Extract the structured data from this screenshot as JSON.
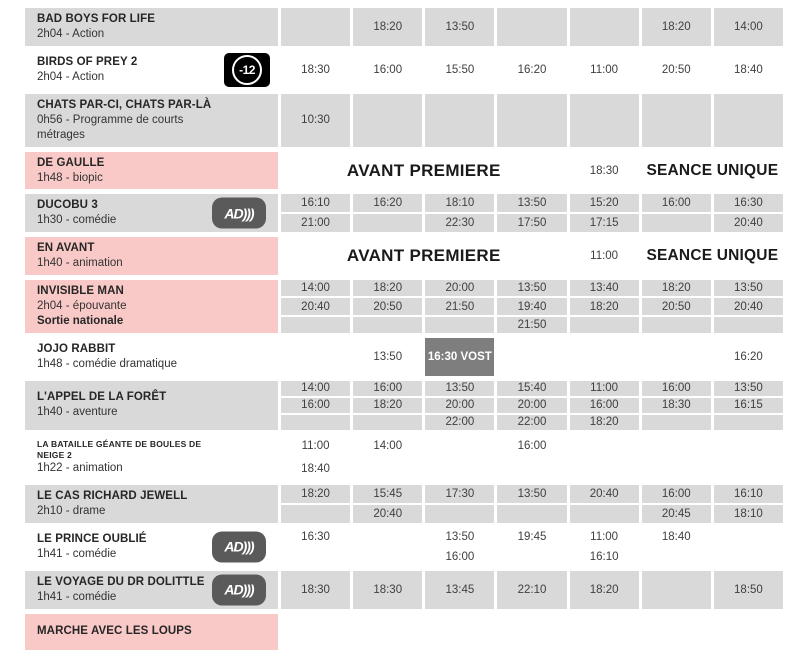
{
  "table": {
    "premiere_label": "AVANT PREMIERE",
    "unique_label": "SEANCE UNIQUE",
    "badges": {
      "minus12": "-12",
      "ad": "AD)))"
    },
    "colors": {
      "row_gray": "#d9d9d9",
      "row_pink": "#f8c9c7",
      "vost_dark": "#7e7e7e",
      "badge_gray": "#5a5a5a",
      "badge_black": "#000000"
    },
    "rows": [
      {
        "title": "BAD BOYS FOR LIFE",
        "subtitle": "2h04 - Action",
        "label_bg": "gray",
        "cell_bg": "gray",
        "lines": 1,
        "times": [
          [
            ""
          ],
          [
            "18:20"
          ],
          [
            "13:50"
          ],
          [
            ""
          ],
          [
            ""
          ],
          [
            "18:20"
          ],
          [
            "14:00"
          ]
        ]
      },
      {
        "title": "BIRDS OF PREY 2",
        "subtitle": "2h04 - Action",
        "badge": "minus12",
        "label_bg": "white",
        "cell_bg": "white",
        "lines": 1,
        "times": [
          [
            "18:30"
          ],
          [
            "16:00"
          ],
          [
            "15:50"
          ],
          [
            "16:20"
          ],
          [
            "11:00"
          ],
          [
            "20:50"
          ],
          [
            "18:40"
          ]
        ]
      },
      {
        "title": "CHATS PAR-CI, CHATS PAR-LÀ",
        "subtitle": "0h56 - Programme de courts métrages",
        "label_bg": "gray",
        "cell_bg": "gray",
        "lines": 1,
        "times": [
          [
            "10:30"
          ],
          [
            ""
          ],
          [
            ""
          ],
          [
            ""
          ],
          [
            ""
          ],
          [
            ""
          ],
          [
            ""
          ]
        ]
      },
      {
        "title": "DE GAULLE",
        "subtitle": "1h48 - biopic",
        "label_bg": "pink",
        "type": "premiere",
        "premiere_time": "18:30"
      },
      {
        "title": "DUCOBU 3",
        "subtitle": "1h30 - comédie",
        "badge": "ad",
        "label_bg": "gray",
        "cell_bg": "gray",
        "lines": 2,
        "times": [
          [
            "16:10",
            "21:00"
          ],
          [
            "16:20",
            ""
          ],
          [
            "18:10",
            "22:30"
          ],
          [
            "13:50",
            "17:50"
          ],
          [
            "15:20",
            "17:15"
          ],
          [
            "16:00",
            ""
          ],
          [
            "16:30",
            "20:40"
          ]
        ]
      },
      {
        "title": "EN AVANT",
        "subtitle": "1h40 - animation",
        "label_bg": "pink",
        "type": "premiere",
        "premiere_time": "11:00"
      },
      {
        "title": "INVISIBLE MAN",
        "subtitle": "2h04 - épouvante",
        "note": "Sortie nationale",
        "label_bg": "pink",
        "cell_bg": "gray",
        "lines": 3,
        "times": [
          [
            "14:00",
            "20:40",
            ""
          ],
          [
            "18:20",
            "20:50",
            ""
          ],
          [
            "20:00",
            "21:50",
            ""
          ],
          [
            "13:50",
            "19:40",
            "21:50"
          ],
          [
            "13:40",
            "18:20",
            ""
          ],
          [
            "18:20",
            "20:50",
            ""
          ],
          [
            "13:50",
            "20:40",
            ""
          ]
        ]
      },
      {
        "title": "JOJO RABBIT",
        "subtitle": "1h48 - comédie dramatique",
        "label_bg": "white",
        "cell_bg": "white",
        "lines": 1,
        "times": [
          [
            ""
          ],
          [
            "13:50"
          ],
          [
            {
              "t": "16:30 VOST",
              "dark": true
            }
          ],
          [
            ""
          ],
          [
            ""
          ],
          [
            ""
          ],
          [
            "16:20"
          ]
        ]
      },
      {
        "title": "L'APPEL DE LA FORÊT",
        "subtitle": "1h40 - aventure",
        "label_bg": "gray",
        "cell_bg": "gray",
        "lines": 3,
        "times": [
          [
            "14:00",
            "16:00",
            ""
          ],
          [
            "16:00",
            "18:20",
            ""
          ],
          [
            "13:50",
            "20:00",
            "22:00"
          ],
          [
            "15:40",
            "20:00",
            "22:00"
          ],
          [
            "11:00",
            "16:00",
            "18:20"
          ],
          [
            "16:00",
            "18:30",
            ""
          ],
          [
            "13:50",
            "16:15",
            ""
          ]
        ]
      },
      {
        "title": "LA BATAILLE GÉANTE DE BOULES DE NEIGE 2",
        "subtitle": "1h22 - animation",
        "label_bg": "white",
        "cell_bg": "white",
        "lines": 2,
        "small_title": true,
        "times": [
          [
            "11:00",
            "18:40"
          ],
          [
            "14:00",
            ""
          ],
          [
            "",
            ""
          ],
          [
            "16:00",
            ""
          ],
          [
            "",
            ""
          ],
          [
            "",
            ""
          ],
          [
            "",
            ""
          ]
        ]
      },
      {
        "title": "LE CAS RICHARD JEWELL",
        "subtitle": "2h10 - drame",
        "label_bg": "gray",
        "cell_bg": "gray",
        "lines": 2,
        "times": [
          [
            "18:20",
            ""
          ],
          [
            "15:45",
            "20:40"
          ],
          [
            "17:30",
            ""
          ],
          [
            "13:50",
            ""
          ],
          [
            "20:40",
            ""
          ],
          [
            "16:00",
            "20:45"
          ],
          [
            "16:10",
            "18:10"
          ]
        ]
      },
      {
        "title": "LE PRINCE OUBLIÉ",
        "subtitle": "1h41 - comédie",
        "badge": "ad",
        "label_bg": "white",
        "cell_bg": "white",
        "lines": 2,
        "times": [
          [
            "16:30",
            ""
          ],
          [
            "",
            ""
          ],
          [
            "13:50",
            "16:00"
          ],
          [
            "19:45",
            ""
          ],
          [
            "11:00",
            "16:10"
          ],
          [
            "18:40",
            ""
          ],
          [
            "",
            ""
          ]
        ]
      },
      {
        "title": "LE VOYAGE DU DR DOLITTLE",
        "subtitle": "1h41 - comédie",
        "badge": "ad",
        "label_bg": "gray",
        "cell_bg": "gray",
        "lines": 1,
        "times": [
          [
            "18:30"
          ],
          [
            "18:30"
          ],
          [
            "13:45"
          ],
          [
            "22:10"
          ],
          [
            "18:20"
          ],
          [
            ""
          ],
          [
            "18:50"
          ]
        ]
      },
      {
        "title": "MARCHE AVEC LES LOUPS",
        "subtitle": "",
        "label_bg": "pink",
        "cell_bg": "white",
        "lines": 1,
        "times": [
          [
            ""
          ],
          [
            ""
          ],
          [
            ""
          ],
          [
            ""
          ],
          [
            ""
          ],
          [
            ""
          ],
          [
            ""
          ]
        ]
      }
    ]
  }
}
